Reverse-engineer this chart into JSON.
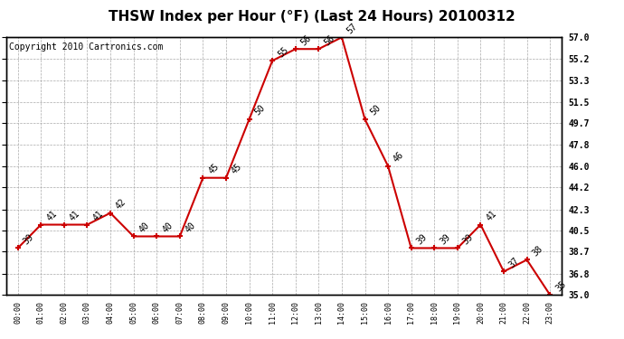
{
  "title": "THSW Index per Hour (°F) (Last 24 Hours) 20100312",
  "copyright": "Copyright 2010 Cartronics.com",
  "hours": [
    "00:00",
    "01:00",
    "02:00",
    "03:00",
    "04:00",
    "05:00",
    "06:00",
    "07:00",
    "08:00",
    "09:00",
    "10:00",
    "11:00",
    "12:00",
    "13:00",
    "14:00",
    "15:00",
    "16:00",
    "17:00",
    "18:00",
    "19:00",
    "20:00",
    "21:00",
    "22:00",
    "23:00"
  ],
  "values": [
    39,
    41,
    41,
    41,
    42,
    40,
    40,
    40,
    45,
    45,
    50,
    55,
    56,
    56,
    57,
    50,
    46,
    39,
    39,
    39,
    41,
    37,
    38,
    35
  ],
  "line_color": "#cc0000",
  "marker_color": "#cc0000",
  "background_color": "#ffffff",
  "grid_color": "#aaaaaa",
  "ylim_min": 35.0,
  "ylim_max": 57.0,
  "yticks": [
    35.0,
    36.8,
    38.7,
    40.5,
    42.3,
    44.2,
    46.0,
    47.8,
    49.7,
    51.5,
    53.3,
    55.2,
    57.0
  ],
  "title_fontsize": 11,
  "copyright_fontsize": 7,
  "label_fontsize": 7
}
